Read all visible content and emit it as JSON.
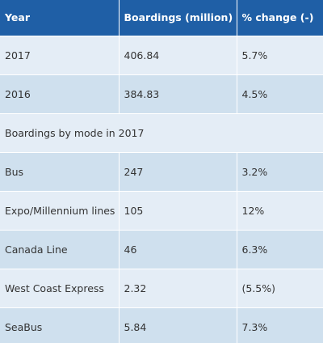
{
  "headers": [
    "Year",
    "Boardings (million)",
    "% change (-)"
  ],
  "rows": [
    {
      "label": "2017",
      "boardings": "406.84",
      "change": "5.7%"
    },
    {
      "label": "2016",
      "boardings": "384.83",
      "change": "4.5%"
    }
  ],
  "section_title": "Boardings by mode in 2017",
  "mode_rows": [
    {
      "label": "Bus",
      "boardings": "247",
      "change": "3.2%"
    },
    {
      "label": "Expo/Millennium lines",
      "boardings": "105",
      "change": "12%"
    },
    {
      "label": "Canada Line",
      "boardings": "46",
      "change": "6.3%"
    },
    {
      "label": "West Coast Express",
      "boardings": "2.32",
      "change": "(5.5%)"
    },
    {
      "label": "SeaBus",
      "boardings": "5.84",
      "change": "7.3%"
    }
  ],
  "colors": {
    "header_bg": "#1f5fa6",
    "row_light": "#e4edf6",
    "row_dark": "#cfe0ee"
  }
}
